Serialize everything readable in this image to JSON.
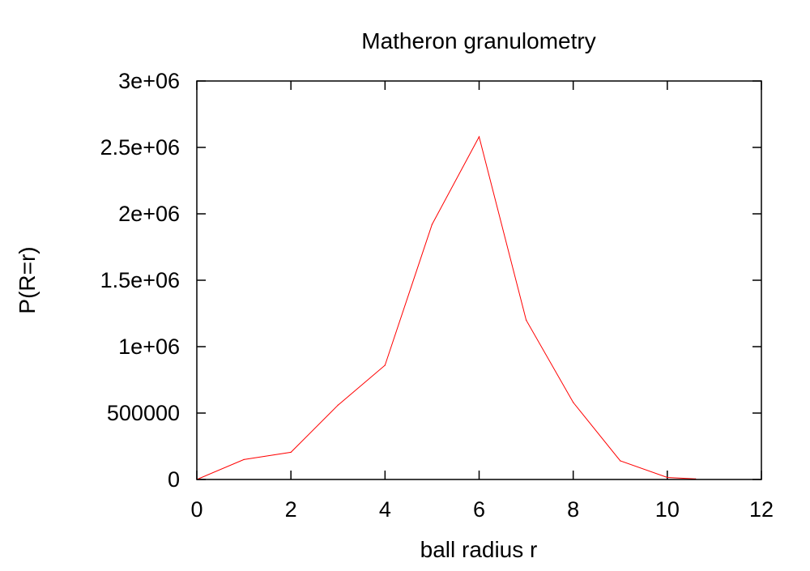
{
  "chart_data": {
    "type": "line",
    "title": "Matheron granulometry",
    "xlabel": "ball radius r",
    "ylabel": "P(R=r)",
    "xlim": [
      0,
      12
    ],
    "ylim": [
      0,
      3000000
    ],
    "x_ticks": [
      0,
      2,
      4,
      6,
      8,
      10,
      12
    ],
    "y_ticks": [
      0,
      500000,
      1000000,
      1500000,
      2000000,
      2500000,
      3000000
    ],
    "x_tick_labels": [
      "0",
      "2",
      "4",
      "6",
      "8",
      "10",
      "12"
    ],
    "y_tick_labels": [
      "0",
      "500000",
      "1e+06",
      "1.5e+06",
      "2e+06",
      "2.5e+06",
      "3e+06"
    ],
    "grid": false,
    "series": [
      {
        "color": "#ff0000",
        "x": [
          0,
          1,
          2,
          3,
          4,
          5,
          6,
          7,
          8,
          9,
          10,
          10.6
        ],
        "y": [
          0,
          150000,
          205000,
          560000,
          860000,
          1920000,
          2580000,
          1200000,
          580000,
          140000,
          15000,
          5000
        ]
      }
    ]
  }
}
